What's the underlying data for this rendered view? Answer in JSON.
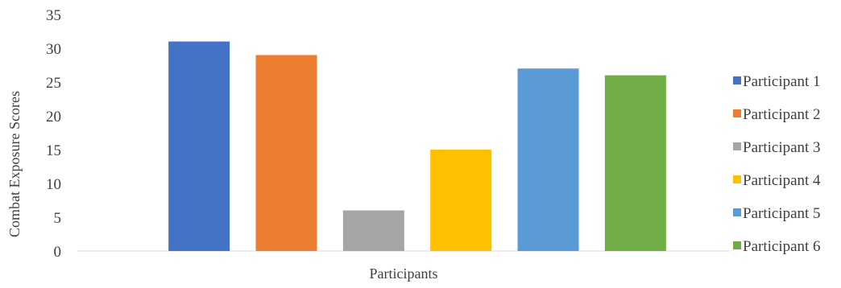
{
  "chart_data": {
    "type": "bar",
    "title": "",
    "xlabel": "Participants",
    "ylabel": "Combat Exposure Scores",
    "ylim": [
      0,
      35
    ],
    "yticks": [
      "0",
      "5",
      "10",
      "15",
      "20",
      "25",
      "30",
      "35"
    ],
    "grid": false,
    "legend_position": "right",
    "categories": [
      ""
    ],
    "series": [
      {
        "name": "Participant 1",
        "values": [
          31
        ],
        "color": "#4472C4"
      },
      {
        "name": "Participant 2",
        "values": [
          29
        ],
        "color": "#ED7D31"
      },
      {
        "name": "Participant 3",
        "values": [
          6
        ],
        "color": "#A5A5A5"
      },
      {
        "name": "Participant 4",
        "values": [
          15
        ],
        "color": "#FFC000"
      },
      {
        "name": "Participant 5",
        "values": [
          27
        ],
        "color": "#5B9BD5"
      },
      {
        "name": "Participant 6",
        "values": [
          26
        ],
        "color": "#70AD47"
      }
    ]
  }
}
